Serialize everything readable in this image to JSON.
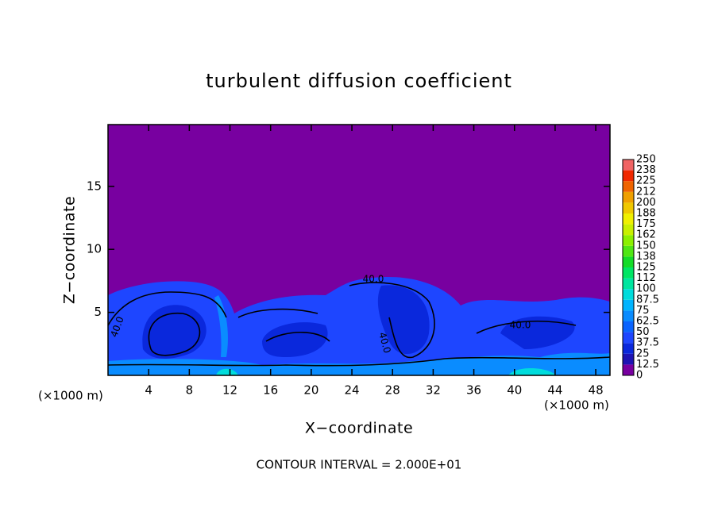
{
  "chart_data": {
    "type": "contour",
    "title": "turbulent diffusion coefficient",
    "x_label": "X−coordinate",
    "y_label": "Z−coordinate",
    "x_unit_left": "(×1000 m)",
    "x_unit_right": "(×1000 m)",
    "footnote": "CONTOUR INTERVAL = 2.000E+01",
    "xlim": [
      0,
      49.4
    ],
    "xticks": [
      4,
      8,
      12,
      16,
      20,
      24,
      28,
      32,
      36,
      40,
      44,
      48
    ],
    "ylim": [
      0,
      19.9
    ],
    "yticks": [
      5,
      10,
      15
    ],
    "contour_labels": [
      "40.0",
      "40.0",
      "40.0",
      "40.0"
    ],
    "colorbar": {
      "levels": [
        0,
        12.5,
        25,
        37.5,
        50,
        62.5,
        75,
        87.5,
        100,
        112,
        125,
        138,
        150,
        162,
        175,
        188,
        200,
        212,
        225,
        238,
        250
      ],
      "colors": [
        "#7800a0",
        "#1e14b4",
        "#0a28dc",
        "#1e46ff",
        "#0a64ff",
        "#0a8cff",
        "#00b4ff",
        "#00dcdc",
        "#00e6a0",
        "#00e664",
        "#14dc28",
        "#50e614",
        "#8cf000",
        "#c8f000",
        "#f0f000",
        "#f0c800",
        "#f0a000",
        "#f06400",
        "#f02800",
        "#f06464"
      ]
    }
  }
}
